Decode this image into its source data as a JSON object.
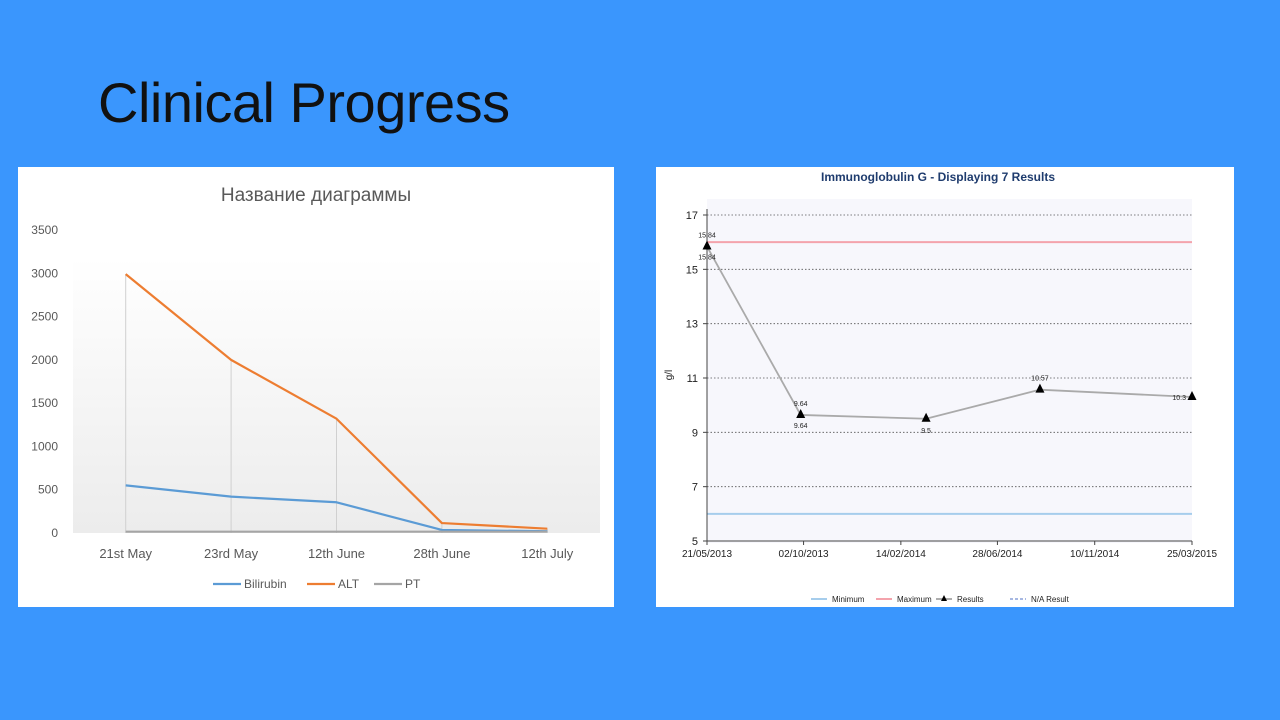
{
  "slide": {
    "title": "Clinical Progress",
    "background": "#3a96fd"
  },
  "chart_data": [
    {
      "type": "line",
      "title": "Название диаграммы",
      "categories": [
        "21st May",
        "23rd May",
        "12th June",
        "28th June",
        "12th July"
      ],
      "series": [
        {
          "name": "Bilirubin",
          "color": "#5b9bd5",
          "values": [
            550,
            420,
            355,
            35,
            20
          ]
        },
        {
          "name": "ALT",
          "color": "#ed7d31",
          "values": [
            2990,
            2000,
            1320,
            115,
            50
          ]
        },
        {
          "name": "PT",
          "color": "#a5a5a5",
          "values": [
            15,
            15,
            15,
            15,
            15
          ]
        }
      ],
      "y_ticks": [
        "0",
        "500",
        "1000",
        "1500",
        "2000",
        "2500",
        "3000",
        "3500"
      ],
      "ylim": [
        0,
        3500
      ],
      "legend_position": "bottom",
      "drop_lines": true
    },
    {
      "type": "line",
      "title": "Immunoglobulin G - Displaying 7 Results",
      "ylabel": "g/l",
      "ylim": [
        5,
        17
      ],
      "y_ticks": [
        "5",
        "7",
        "9",
        "11",
        "13",
        "15",
        "17"
      ],
      "x_ticks": [
        "21/05/2013",
        "02/10/2013",
        "14/02/2014",
        "28/06/2014",
        "10/11/2014",
        "25/03/2015"
      ],
      "x_tick_dates": [
        "2013-05-21",
        "2013-10-02",
        "2014-02-14",
        "2014-06-28",
        "2014-11-10",
        "2015-03-25"
      ],
      "grid": "horizontal dotted",
      "legend_position": "bottom",
      "reference_lines": [
        {
          "name": "Minimum",
          "value": 6.0,
          "color": "#a6cdec"
        },
        {
          "name": "Maximum",
          "value": 16.0,
          "color": "#f4a3ac"
        }
      ],
      "legend": [
        {
          "name": "Minimum",
          "color": "#a6cdec",
          "style": "line"
        },
        {
          "name": "Maximum",
          "color": "#f4a3ac",
          "style": "line"
        },
        {
          "name": "Results",
          "color": "#555555",
          "style": "triangle-line"
        },
        {
          "name": "N/A Result",
          "color": "#8aa0d8",
          "style": "dashed"
        }
      ],
      "results": [
        {
          "date": "2013-05-21",
          "value": 15.84,
          "labels": [
            "15.84",
            "15.84"
          ]
        },
        {
          "date": "2013-09-28",
          "value": 9.64,
          "labels": [
            "9.64",
            "9.64"
          ]
        },
        {
          "date": "2014-03-21",
          "value": 9.5,
          "labels": [
            "9.5"
          ]
        },
        {
          "date": "2014-08-26",
          "value": 10.57,
          "labels": [
            "10.57"
          ]
        },
        {
          "date": "2015-03-25",
          "value": 10.3,
          "labels": [
            "10.3"
          ]
        }
      ]
    }
  ]
}
